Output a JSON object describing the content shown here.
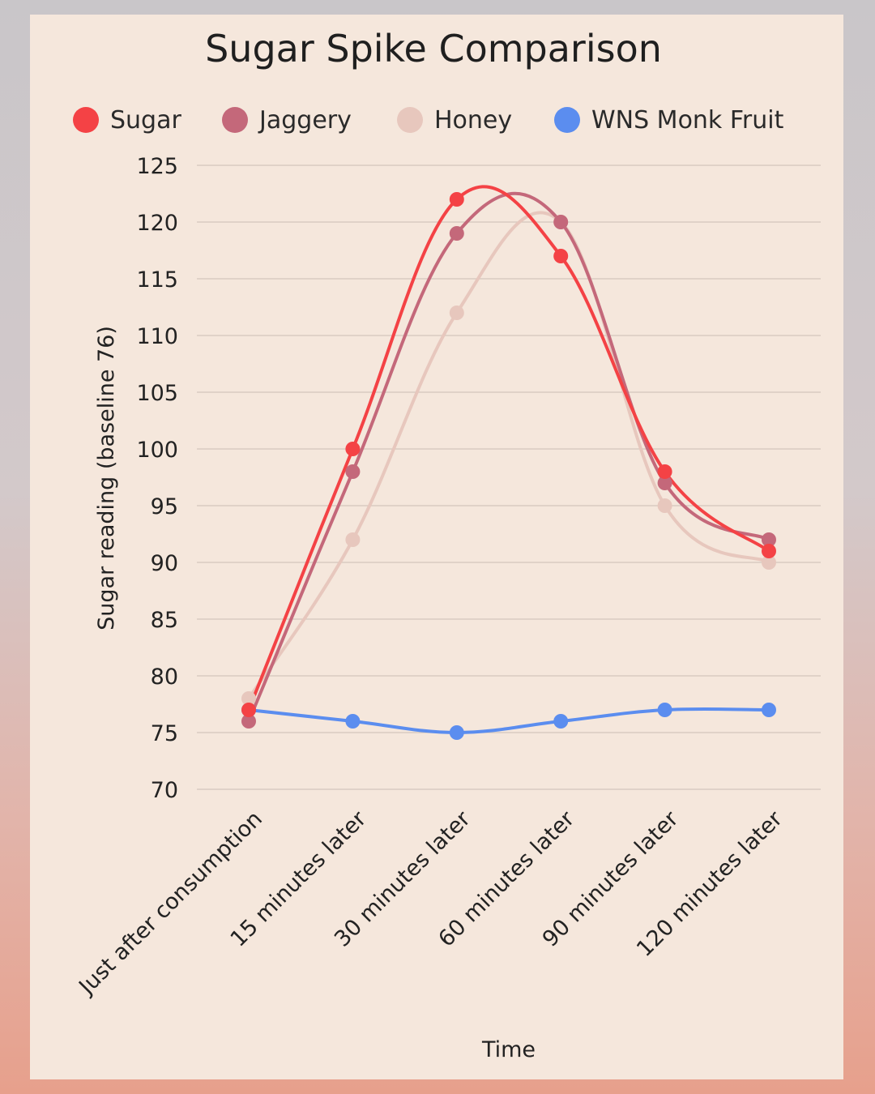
{
  "chart_data": {
    "type": "line",
    "title": "Sugar Spike Comparison",
    "xlabel": "Time",
    "ylabel": "Sugar reading (baseline 76)",
    "ylim": [
      70,
      125
    ],
    "yticks": [
      70,
      75,
      80,
      85,
      90,
      95,
      100,
      105,
      110,
      115,
      120,
      125
    ],
    "grid": true,
    "legend_position": "top",
    "smooth": true,
    "categories": [
      "Just after consumption",
      "15 minutes later",
      "30 minutes later",
      "60 minutes later",
      "90 minutes later",
      "120 minutes later"
    ],
    "series": [
      {
        "name": "Sugar",
        "color": "#f44245",
        "values": [
          77,
          100,
          122,
          117,
          98,
          91
        ]
      },
      {
        "name": "Jaggery",
        "color": "#c4687a",
        "values": [
          76,
          98,
          119,
          120,
          97,
          92
        ]
      },
      {
        "name": "Honey",
        "color": "#e7c7bd",
        "values": [
          78,
          92,
          112,
          120,
          95,
          90
        ]
      },
      {
        "name": "WNS Monk Fruit",
        "color": "#5b8def",
        "values": [
          77,
          76,
          75,
          76,
          77,
          77
        ]
      }
    ]
  }
}
